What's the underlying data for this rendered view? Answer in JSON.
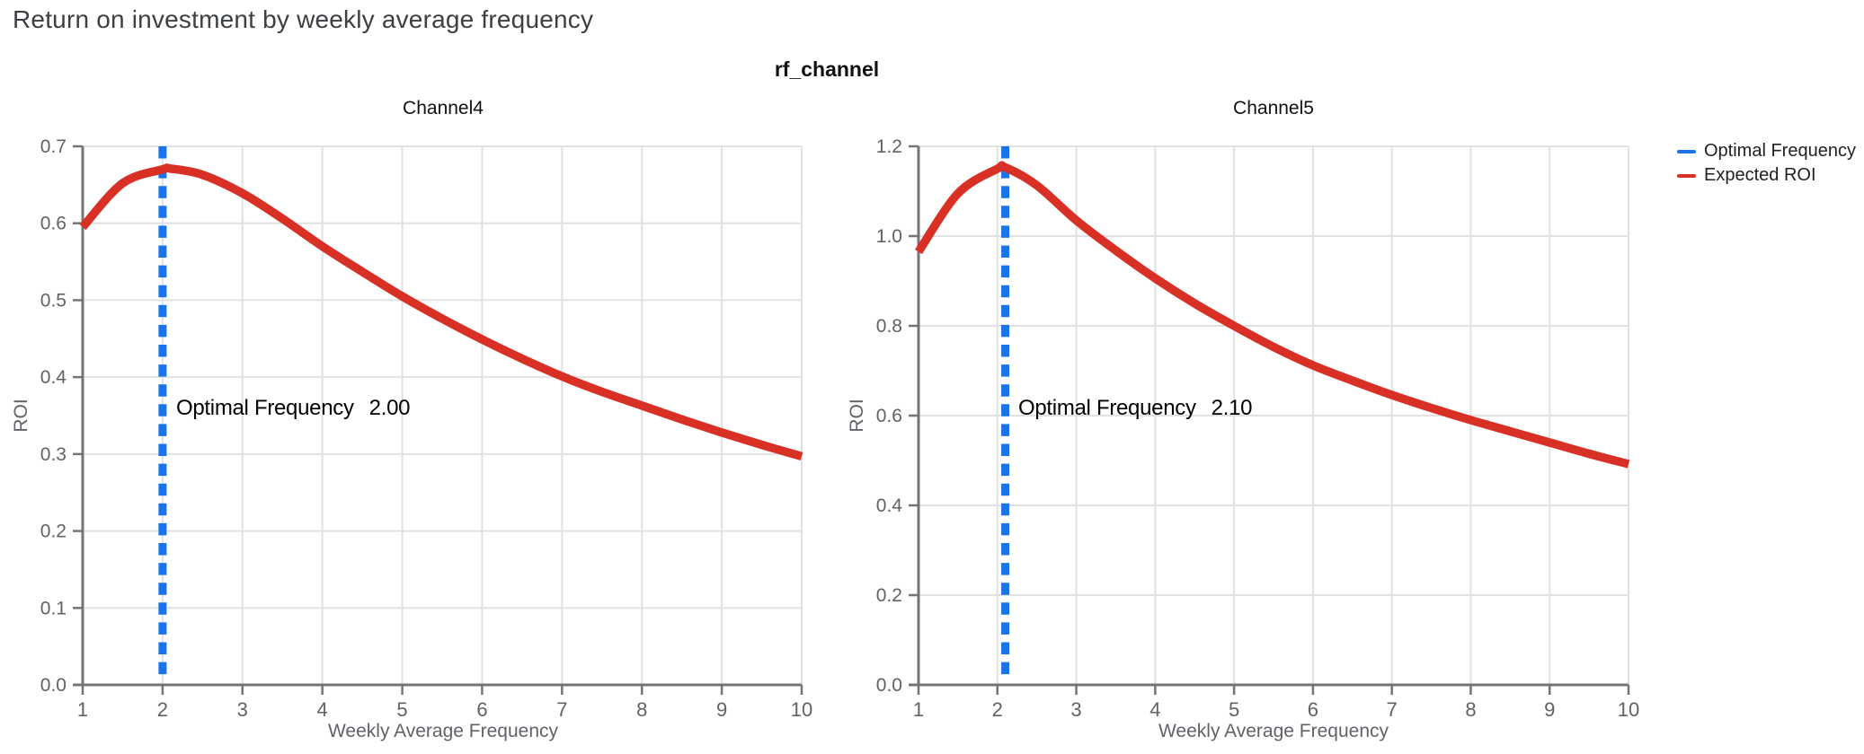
{
  "header": {
    "title": "Return on investment by weekly average frequency",
    "facet_label": "rf_channel"
  },
  "legend": [
    {
      "label": "Optimal Frequency",
      "color": "#1a73e8"
    },
    {
      "label": "Expected ROI",
      "color": "#d93025"
    }
  ],
  "colors": {
    "expected_roi": "#d93025",
    "optimal_frequency": "#1a73e8",
    "grid": "#e1e1e1",
    "axis": "#757575",
    "tick_label": "#5f6368"
  },
  "chart_data": [
    {
      "type": "line",
      "title": "Channel4",
      "xlabel": "Weekly Average Frequency",
      "ylabel": "ROI",
      "xlim": [
        1,
        10
      ],
      "ylim": [
        0,
        0.7
      ],
      "grid": true,
      "legend_position": "top-right",
      "xticks": [
        "1",
        "2",
        "3",
        "4",
        "5",
        "6",
        "7",
        "8",
        "9",
        "10"
      ],
      "yticks": [
        "0.0",
        "0.1",
        "0.2",
        "0.3",
        "0.4",
        "0.5",
        "0.6",
        "0.7"
      ],
      "optimal_frequency": 2.0,
      "annotation": {
        "label": "Optimal Frequency",
        "value": "2.00"
      },
      "series": [
        {
          "name": "Expected ROI",
          "x": [
            1,
            1.5,
            2,
            2.1,
            2.5,
            3,
            3.5,
            4,
            4.5,
            5,
            5.5,
            6,
            6.5,
            7,
            7.5,
            8,
            8.5,
            9,
            9.5,
            10
          ],
          "y": [
            0.595,
            0.652,
            0.67,
            0.671,
            0.663,
            0.639,
            0.606,
            0.57,
            0.537,
            0.505,
            0.476,
            0.449,
            0.424,
            0.401,
            0.381,
            0.363,
            0.345,
            0.328,
            0.312,
            0.297
          ]
        }
      ]
    },
    {
      "type": "line",
      "title": "Channel5",
      "xlabel": "Weekly Average Frequency",
      "ylabel": "ROI",
      "xlim": [
        1,
        10
      ],
      "ylim": [
        0,
        1.2
      ],
      "grid": true,
      "legend_position": "top-right",
      "xticks": [
        "1",
        "2",
        "3",
        "4",
        "5",
        "6",
        "7",
        "8",
        "9",
        "10"
      ],
      "yticks": [
        "0.0",
        "0.2",
        "0.4",
        "0.6",
        "0.8",
        "1.0",
        "1.2"
      ],
      "optimal_frequency": 2.1,
      "annotation": {
        "label": "Optimal Frequency",
        "value": "2.10"
      },
      "series": [
        {
          "name": "Expected ROI",
          "x": [
            1,
            1.5,
            2,
            2.1,
            2.5,
            3,
            3.5,
            4,
            4.5,
            5,
            5.5,
            6,
            6.5,
            7,
            7.5,
            8,
            8.5,
            9,
            9.5,
            10
          ],
          "y": [
            0.965,
            1.095,
            1.15,
            1.153,
            1.113,
            1.035,
            0.968,
            0.906,
            0.85,
            0.8,
            0.753,
            0.712,
            0.678,
            0.646,
            0.617,
            0.59,
            0.565,
            0.54,
            0.515,
            0.492
          ]
        }
      ]
    }
  ]
}
